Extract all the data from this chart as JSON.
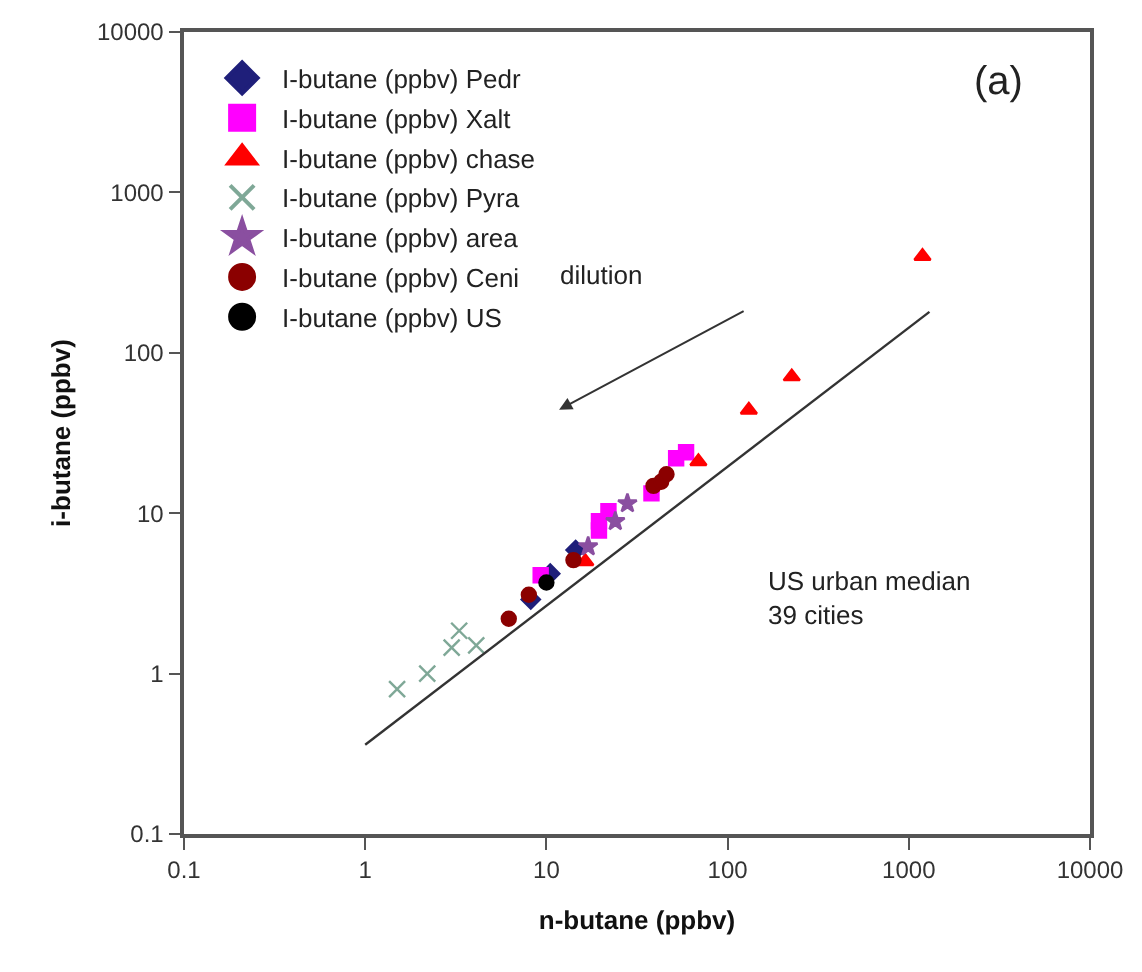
{
  "chart_data": {
    "type": "scatter",
    "xlabel": "n-butane (ppbv)",
    "ylabel": "i-butane (ppbv)",
    "log": "xy",
    "xlim": [
      0.1,
      10000
    ],
    "ylim": [
      0.1,
      10000
    ],
    "xticks": [
      0.1,
      1,
      10,
      100,
      1000,
      10000
    ],
    "yticks": [
      0.1,
      1,
      10,
      100,
      1000,
      10000
    ],
    "legend": "top left",
    "annotations": [
      "(a)",
      "dilution",
      "US urban median\n39 cities"
    ],
    "series": [
      {
        "name": "I-butane (ppbv) Pedr",
        "color": "#1f1f7a",
        "marker": "diamond",
        "x": [
          14.5,
          8.2,
          10.5
        ],
        "values": [
          5.9,
          2.9,
          4.2
        ]
      },
      {
        "name": "I-butane (ppbv) Xalt",
        "color": "#ff00ff",
        "marker": "square",
        "x": [
          9.3,
          19.5,
          19.5,
          22,
          38,
          52,
          59
        ],
        "values": [
          4.1,
          7.8,
          8.9,
          10.3,
          13.3,
          22,
          24
        ]
      },
      {
        "name": "I-butane (ppbv) chase",
        "color": "#ff0000",
        "marker": "triangle",
        "x": [
          16.4,
          69,
          131,
          226,
          1190
        ],
        "values": [
          5,
          21,
          44,
          71,
          400
        ]
      },
      {
        "name": "I-butane (ppbv) Pyra",
        "color": "#7fa897",
        "marker": "cross",
        "x": [
          1.5,
          2.2,
          3.0,
          3.3,
          4.1
        ],
        "values": [
          0.8,
          1.0,
          1.45,
          1.85,
          1.5
        ]
      },
      {
        "name": "I-butane (ppbv) area",
        "color": "#8a4fa0",
        "marker": "star",
        "x": [
          17,
          24,
          28
        ],
        "values": [
          6.2,
          8.9,
          11.5
        ]
      },
      {
        "name": "I-butane (ppbv) Ceni",
        "color": "#8b0000",
        "marker": "circle",
        "x": [
          6.2,
          8.0,
          14.1,
          39,
          43,
          46
        ],
        "values": [
          2.2,
          3.1,
          5.1,
          14.8,
          15.7,
          17.5
        ]
      },
      {
        "name": "I-butane (ppbv) US",
        "color": "#000000",
        "marker": "circle",
        "x": [
          10
        ],
        "values": [
          3.7
        ]
      },
      {
        "type": "line",
        "color": "#333333",
        "marker": "none",
        "x": [
          1,
          1300
        ],
        "values": [
          0.36,
          180
        ]
      }
    ]
  }
}
